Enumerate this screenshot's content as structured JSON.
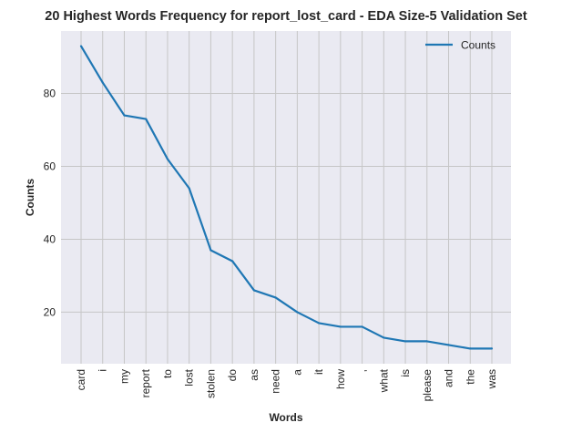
{
  "chart_data": {
    "type": "line",
    "title": "20 Highest Words Frequency for report_lost_card - EDA Size-5 Validation Set",
    "xlabel": "Words",
    "ylabel": "Counts",
    "categories": [
      "card",
      "i",
      "my",
      "report",
      "to",
      "lost",
      "stolen",
      "do",
      "as",
      "need",
      "a",
      "it",
      "how",
      ",",
      "what",
      "is",
      "please",
      "and",
      "the",
      "was"
    ],
    "series": [
      {
        "name": "Counts",
        "color": "#1f77b4",
        "values": [
          93,
          83,
          74,
          73,
          62,
          54,
          37,
          34,
          26,
          24,
          20,
          17,
          16,
          16,
          13,
          12,
          12,
          11,
          10,
          10
        ]
      }
    ],
    "yticks": [
      20,
      40,
      60,
      80
    ],
    "ylim": [
      5.85,
      97.15
    ],
    "grid": true,
    "legend_position": "top-right"
  }
}
